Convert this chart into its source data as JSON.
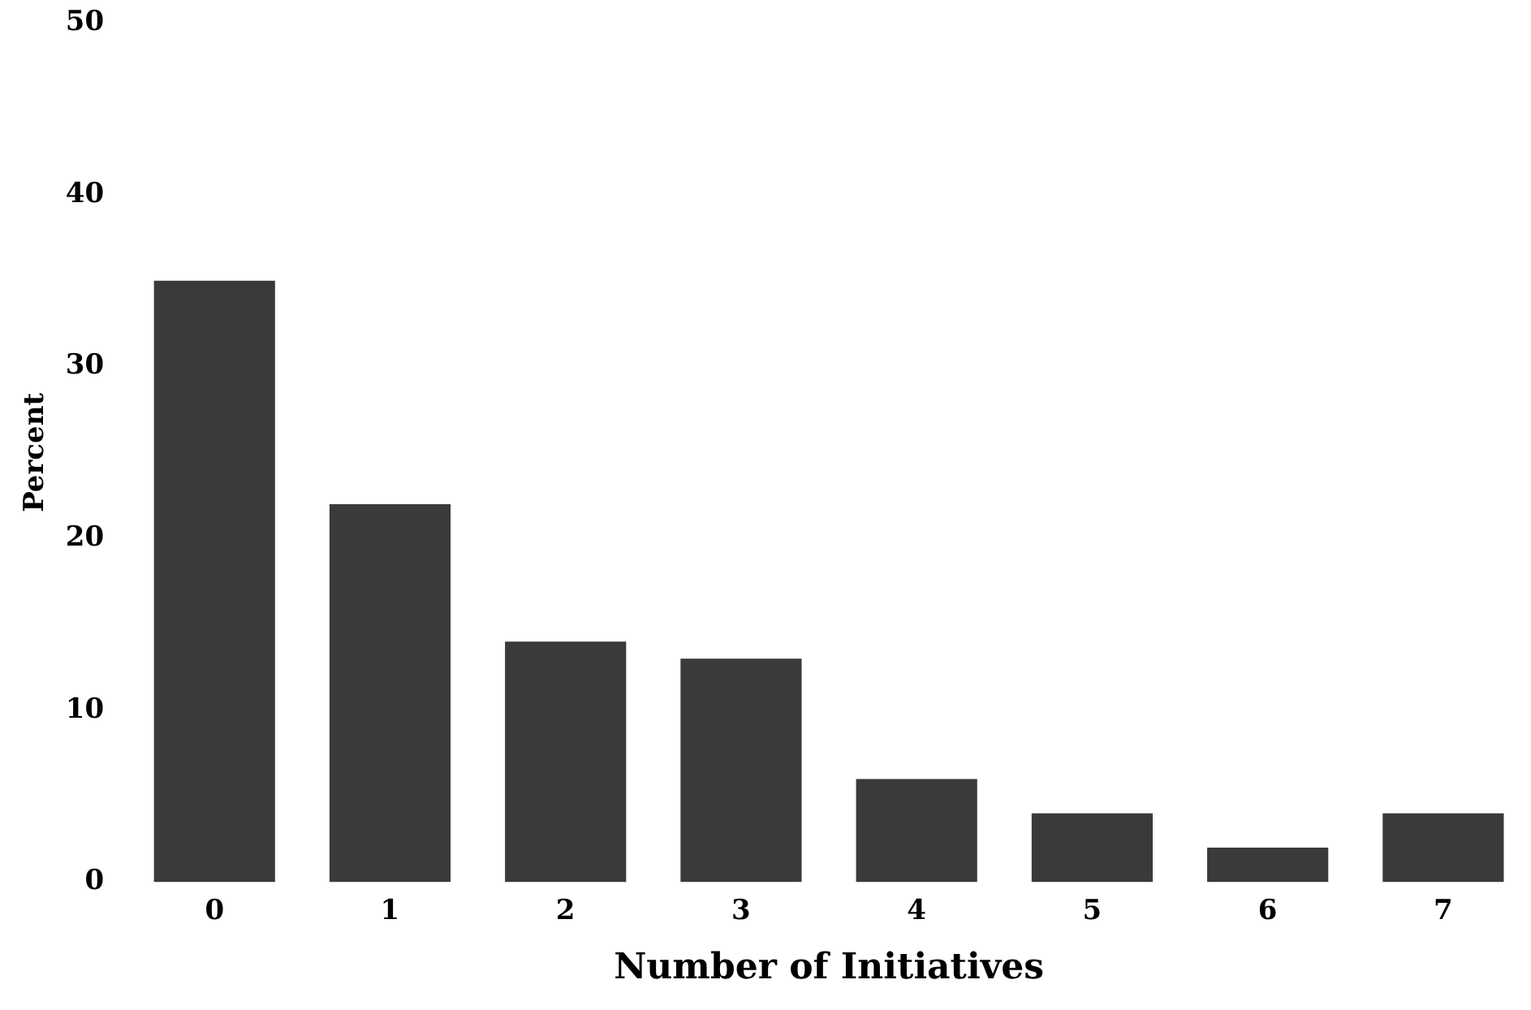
{
  "chart_data": {
    "type": "bar",
    "xlabel": "Number of Initiatives",
    "ylabel": "Percent",
    "categories": [
      "0",
      "1",
      "2",
      "3",
      "4",
      "5",
      "6",
      "7"
    ],
    "values": [
      35,
      22,
      14,
      13,
      6,
      4,
      2,
      4
    ],
    "color": "#3a3a3a",
    "ylim": [
      0,
      50
    ],
    "yticks": [
      0,
      10,
      20,
      30,
      40,
      50
    ],
    "grid": false,
    "legend": false
  }
}
